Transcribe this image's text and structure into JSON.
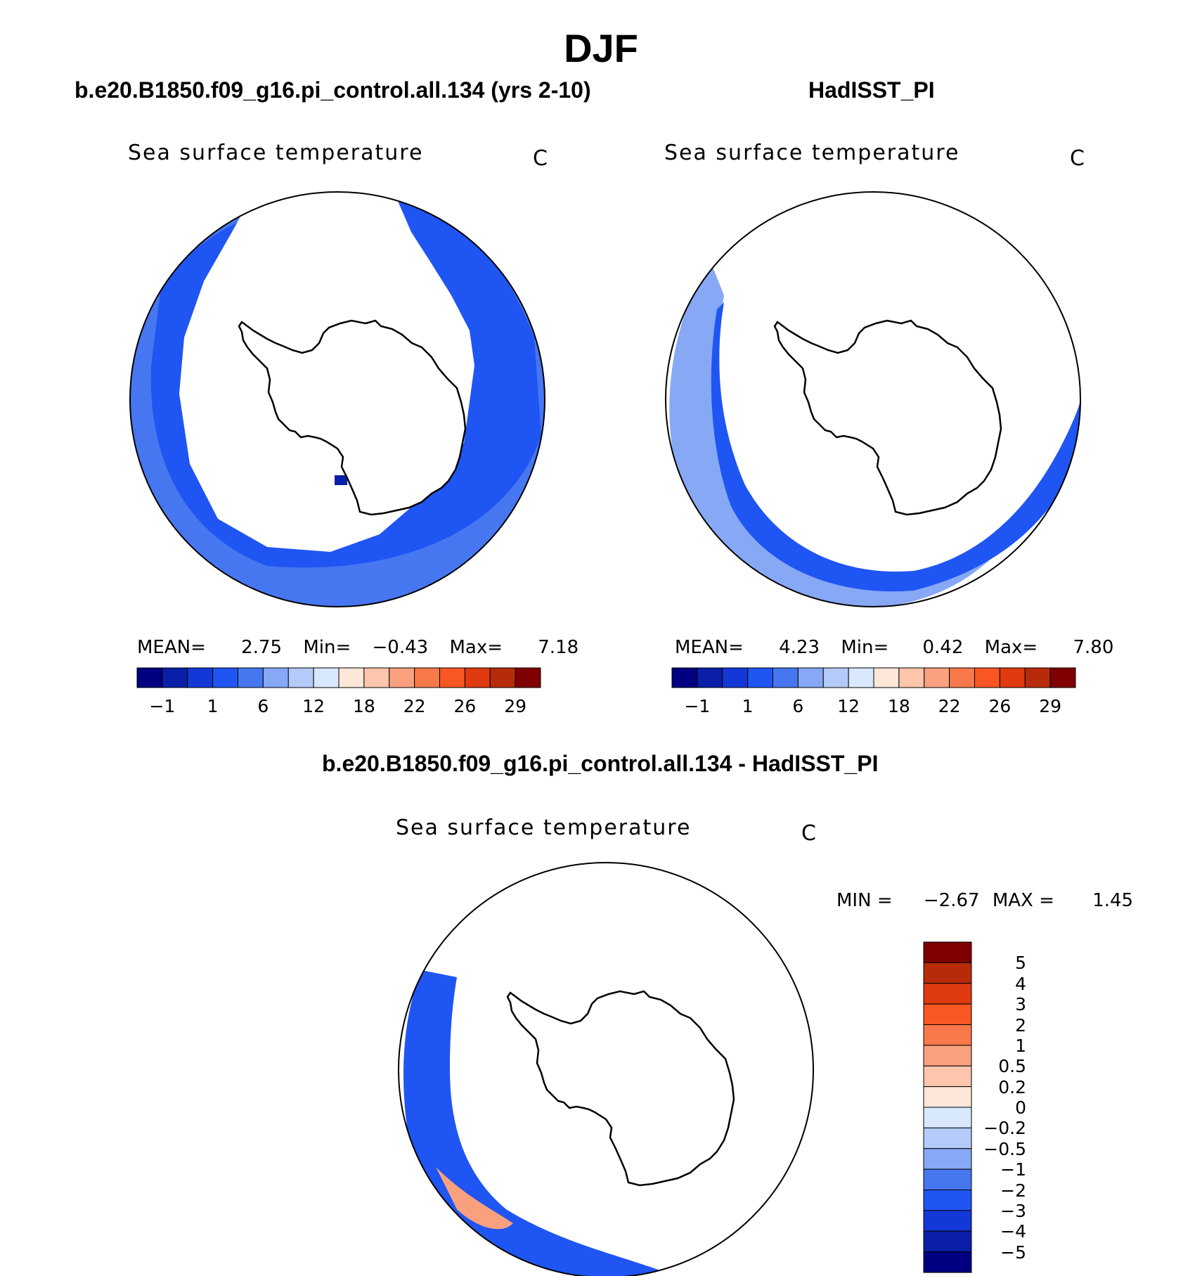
{
  "title": "DJF",
  "panels": [
    {
      "case": "b.e20.B1850.f09_g16.pi_control.all.134 (yrs 2-10)",
      "variable": "Sea surface temperature",
      "units": "C",
      "stats": {
        "mean_label": "MEAN=",
        "mean": "2.75",
        "min_label": "Min=",
        "min": "−0.43",
        "max_label": "Max=",
        "max": "7.18"
      }
    },
    {
      "case": "HadISST_PI",
      "variable": "Sea surface temperature",
      "units": "C",
      "stats": {
        "mean_label": "MEAN=",
        "mean": "4.23",
        "min_label": "Min=",
        "min": "0.42",
        "max_label": "Max=",
        "max": "7.80"
      }
    },
    {
      "case": "b.e20.B1850.f09_g16.pi_control.all.134 - HadISST_PI",
      "variable": "Sea surface temperature",
      "units": "C",
      "stats": {
        "min_label": "MIN =",
        "min": "−2.67",
        "max_label": "MAX =",
        "max": "1.45"
      }
    }
  ],
  "colorbar_abs": {
    "colors": [
      "#000080",
      "#0a1fa8",
      "#1438d8",
      "#1f55f2",
      "#4677f0",
      "#86a8f5",
      "#b4caf9",
      "#d8e8fd",
      "#fde7d8",
      "#fcc5ac",
      "#f9a07e",
      "#f8784a",
      "#f95623",
      "#e03a10",
      "#b82b0a",
      "#800000"
    ],
    "labels": [
      "−1",
      "1",
      "6",
      "12",
      "18",
      "22",
      "26",
      "29"
    ]
  },
  "colorbar_diff": {
    "colors": [
      "#000080",
      "#0a1fa8",
      "#1438d8",
      "#1f55f2",
      "#4677f0",
      "#86a8f5",
      "#b4caf9",
      "#d8e8fd",
      "#fde7d8",
      "#fcc5ac",
      "#f9a07e",
      "#f8784a",
      "#f95623",
      "#e03a10",
      "#b82b0a",
      "#800000"
    ],
    "labels": [
      "5",
      "4",
      "3",
      "2",
      "1",
      "0.5",
      "0.2",
      "0",
      "−0.2",
      "−0.5",
      "−1",
      "−2",
      "−3",
      "−4",
      "−5"
    ]
  }
}
